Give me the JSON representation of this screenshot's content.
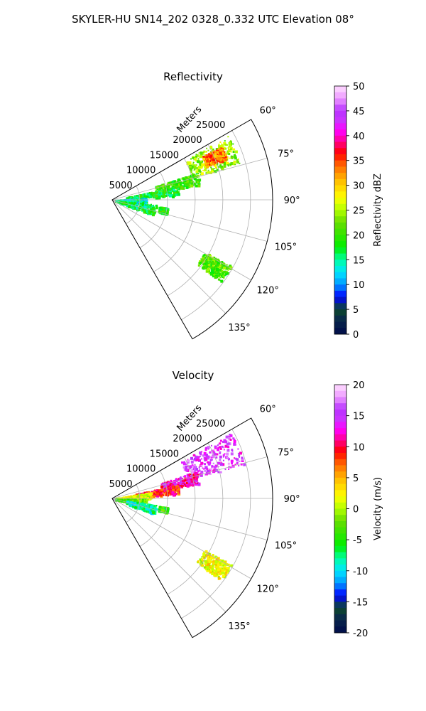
{
  "figure_title": "SKYLER-HU  SN14_202  0328_0.332 UTC Elevation 08°",
  "chart_data": [
    {
      "type": "polar-sector-radar",
      "title": "Reflectivity",
      "radial_axis_label": "Meters",
      "radial_ticks": [
        "5000",
        "10000",
        "15000",
        "20000",
        "25000"
      ],
      "radial_tick_values": [
        5000,
        10000,
        15000,
        20000,
        25000
      ],
      "rlim": [
        0,
        29000
      ],
      "angle_ticks": [
        "60°",
        "75°",
        "90°",
        "105°",
        "120°",
        "135°"
      ],
      "angle_tick_values": [
        60,
        75,
        90,
        105,
        120,
        135
      ],
      "thetalim": [
        60,
        150
      ],
      "grid": true,
      "colorbar": {
        "label": "Reflectivity dBZ",
        "range": [
          0,
          50
        ],
        "ticks": [
          "0",
          "5",
          "10",
          "15",
          "20",
          "25",
          "30",
          "35",
          "40",
          "45",
          "50"
        ],
        "tick_values": [
          0,
          5,
          10,
          15,
          20,
          25,
          30,
          35,
          40,
          45,
          50
        ]
      },
      "echo_regions": [
        {
          "theta": [
            61,
            74
          ],
          "r": [
            15000,
            24000
          ],
          "value": 24
        },
        {
          "theta": [
            64,
            70
          ],
          "r": [
            18000,
            22000
          ],
          "value": 33
        },
        {
          "theta": [
            72,
            80
          ],
          "r": [
            8000,
            16000
          ],
          "value": 20
        },
        {
          "theta": [
            78,
            86
          ],
          "r": [
            2500,
            12000
          ],
          "value": 18
        },
        {
          "theta": [
            86,
            96
          ],
          "r": [
            500,
            6000
          ],
          "value": 14
        },
        {
          "theta": [
            96,
            110
          ],
          "r": [
            1000,
            8000
          ],
          "value": 17
        },
        {
          "theta": [
            98,
            104
          ],
          "r": [
            8500,
            10000
          ],
          "value": 19
        },
        {
          "theta": [
            119,
            127
          ],
          "r": [
            19000,
            24500
          ],
          "value": 21
        }
      ]
    },
    {
      "type": "polar-sector-radar",
      "title": "Velocity",
      "radial_axis_label": "Meters",
      "radial_ticks": [
        "5000",
        "10000",
        "15000",
        "20000",
        "25000"
      ],
      "radial_tick_values": [
        5000,
        10000,
        15000,
        20000,
        25000
      ],
      "rlim": [
        0,
        29000
      ],
      "angle_ticks": [
        "60°",
        "75°",
        "90°",
        "105°",
        "120°",
        "135°"
      ],
      "angle_tick_values": [
        60,
        75,
        90,
        105,
        120,
        135
      ],
      "thetalim": [
        60,
        150
      ],
      "grid": true,
      "colorbar": {
        "label": "Velocity (m/s)",
        "range": [
          -20,
          20
        ],
        "ticks": [
          "-20",
          "-15",
          "-10",
          "-5",
          "0",
          "5",
          "10",
          "15",
          "20"
        ],
        "tick_values": [
          -20,
          -15,
          -10,
          -5,
          0,
          5,
          10,
          15,
          20
        ]
      },
      "echo_regions": [
        {
          "theta": [
            61,
            76
          ],
          "r": [
            14000,
            24500
          ],
          "value": 15
        },
        {
          "theta": [
            72,
            80
          ],
          "r": [
            9000,
            16000
          ],
          "value": 12
        },
        {
          "theta": [
            78,
            86
          ],
          "r": [
            4000,
            12000
          ],
          "value": 9
        },
        {
          "theta": [
            80,
            90
          ],
          "r": [
            500,
            7000
          ],
          "value": 2
        },
        {
          "theta": [
            90,
            100
          ],
          "r": [
            500,
            6000
          ],
          "value": -3
        },
        {
          "theta": [
            98,
            110
          ],
          "r": [
            2500,
            8000
          ],
          "value": -8
        },
        {
          "theta": [
            99,
            104
          ],
          "r": [
            8500,
            10000
          ],
          "value": -4
        },
        {
          "theta": [
            119,
            127
          ],
          "r": [
            19000,
            24500
          ],
          "value": 2
        }
      ]
    }
  ]
}
